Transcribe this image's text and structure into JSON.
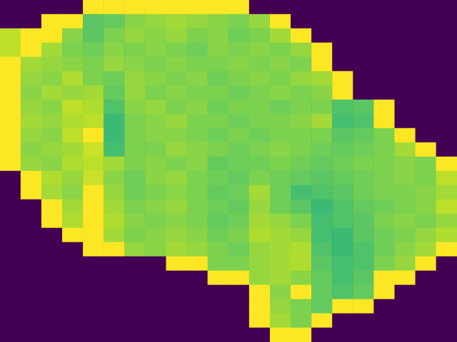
{
  "chart_data": {
    "type": "heatmap",
    "tick_labels": false,
    "color_range": [
      0,
      1
    ],
    "cells": [
      [
        0,
        0,
        0,
        0,
        1,
        1,
        1,
        1,
        1,
        1,
        1,
        1,
        0,
        0,
        0,
        0,
        0,
        0,
        0,
        0,
        0,
        0
      ],
      [
        0,
        0,
        1,
        1,
        0.74,
        0.76,
        0.82,
        0.84,
        0.86,
        0.84,
        0.82,
        0.8,
        0.84,
        1,
        0,
        0,
        0,
        0,
        0,
        0,
        0,
        0
      ],
      [
        0.9,
        1,
        1,
        0.82,
        0.74,
        0.8,
        0.84,
        0.82,
        0.84,
        0.8,
        0.82,
        0.78,
        0.8,
        0.86,
        1,
        0,
        0,
        0,
        0,
        0,
        0,
        0
      ],
      [
        0.9,
        1,
        0.86,
        0.8,
        0.78,
        0.82,
        0.8,
        0.82,
        0.8,
        0.78,
        0.82,
        0.8,
        0.82,
        0.8,
        0.84,
        1,
        0,
        0,
        0,
        0,
        0,
        0
      ],
      [
        1,
        0.86,
        0.84,
        0.82,
        0.8,
        0.84,
        0.82,
        0.8,
        0.82,
        0.8,
        0.8,
        0.82,
        0.8,
        0.82,
        0.8,
        1,
        0,
        0,
        0,
        0,
        0,
        0
      ],
      [
        1,
        0.84,
        0.82,
        0.88,
        0.8,
        0.78,
        0.84,
        0.82,
        0.8,
        0.82,
        0.78,
        0.8,
        0.82,
        0.8,
        0.84,
        0.86,
        1,
        0,
        0,
        0,
        0,
        0
      ],
      [
        1,
        0.82,
        0.86,
        0.84,
        0.86,
        0.76,
        0.84,
        0.8,
        0.82,
        0.8,
        0.8,
        0.78,
        0.8,
        0.82,
        0.8,
        0.82,
        1,
        0,
        0,
        0,
        0,
        0
      ],
      [
        1,
        0.84,
        0.82,
        0.9,
        0.88,
        0.72,
        0.82,
        0.84,
        0.8,
        0.82,
        0.78,
        0.8,
        0.8,
        0.78,
        0.8,
        0.8,
        0.72,
        0.74,
        1,
        0,
        0,
        0
      ],
      [
        1,
        0.86,
        0.84,
        0.88,
        0.9,
        0.68,
        0.8,
        0.82,
        0.84,
        0.8,
        0.8,
        0.78,
        0.8,
        0.8,
        0.82,
        0.86,
        0.7,
        0.72,
        1,
        0,
        0,
        0
      ],
      [
        1,
        0.84,
        0.82,
        0.9,
        1,
        0.68,
        0.8,
        0.82,
        0.82,
        0.8,
        0.78,
        0.8,
        0.78,
        0.8,
        0.8,
        0.8,
        0.74,
        0.76,
        0.8,
        1,
        0,
        0
      ],
      [
        1,
        0.82,
        0.84,
        0.86,
        0.92,
        0.7,
        0.8,
        0.8,
        0.84,
        0.82,
        0.8,
        0.78,
        0.8,
        0.82,
        0.8,
        0.78,
        0.76,
        0.78,
        0.8,
        0.86,
        1,
        0
      ],
      [
        1,
        0.84,
        0.82,
        0.88,
        0.9,
        0.86,
        0.8,
        0.82,
        0.8,
        0.82,
        0.76,
        0.78,
        0.78,
        0.8,
        0.78,
        0.76,
        0.78,
        0.8,
        0.8,
        0.82,
        0.8,
        1
      ],
      [
        0,
        1,
        0.88,
        0.84,
        0.92,
        0.82,
        0.78,
        0.82,
        0.84,
        0.8,
        0.78,
        0.76,
        0.8,
        0.78,
        0.76,
        0.74,
        0.76,
        0.78,
        0.8,
        0.82,
        0.8,
        0.9
      ],
      [
        0,
        1,
        0.86,
        0.82,
        1,
        0.84,
        0.78,
        0.8,
        0.82,
        0.8,
        0.76,
        0.78,
        0.86,
        0.78,
        0.7,
        0.72,
        0.74,
        0.78,
        0.8,
        0.8,
        0.82,
        0.86
      ],
      [
        0,
        0,
        1,
        0.86,
        1,
        0.86,
        0.8,
        0.82,
        0.84,
        0.8,
        0.78,
        0.76,
        0.84,
        0.78,
        0.74,
        0.68,
        0.72,
        0.76,
        0.78,
        0.8,
        0.82,
        0.9
      ],
      [
        0,
        0,
        1,
        0.88,
        1,
        0.88,
        0.82,
        0.8,
        0.82,
        0.8,
        0.76,
        0.78,
        0.86,
        0.84,
        0.8,
        0.7,
        0.72,
        0.74,
        0.8,
        0.82,
        0.8,
        0.84
      ],
      [
        0,
        0,
        0,
        1,
        1,
        0.86,
        0.8,
        0.82,
        0.84,
        0.82,
        0.78,
        0.8,
        0.88,
        0.86,
        0.84,
        0.7,
        0.68,
        0.74,
        0.78,
        0.8,
        0.84,
        0.88
      ],
      [
        0,
        0,
        0,
        0,
        1,
        1,
        0.84,
        0.82,
        0.86,
        0.84,
        0.8,
        0.78,
        0.84,
        0.86,
        0.88,
        0.72,
        0.68,
        0.72,
        0.78,
        0.82,
        0.86,
        1
      ],
      [
        0,
        0,
        0,
        0,
        0,
        0,
        0,
        0,
        1,
        1,
        0.8,
        0.8,
        0.84,
        0.86,
        0.88,
        0.74,
        0.7,
        0.72,
        0.8,
        0.84,
        1,
        0
      ],
      [
        0,
        0,
        0,
        0,
        0,
        0,
        0,
        0,
        0,
        0,
        1,
        1,
        0.84,
        0.86,
        0.82,
        0.76,
        0.7,
        0.74,
        1,
        1,
        0,
        0
      ],
      [
        0,
        0,
        0,
        0,
        0,
        0,
        0,
        0,
        0,
        0,
        0,
        0,
        1,
        0.82,
        1,
        0.76,
        0.72,
        0.76,
        1,
        0,
        0,
        0
      ],
      [
        0,
        0,
        0,
        0,
        0,
        0,
        0,
        0,
        0,
        0,
        0,
        0,
        1,
        0.84,
        0.8,
        0.76,
        1,
        1,
        0,
        0,
        0,
        0
      ],
      [
        0,
        0,
        0,
        0,
        0,
        0,
        0,
        0,
        0,
        0,
        0,
        0,
        1,
        0.86,
        0.8,
        1,
        0,
        0,
        0,
        0,
        0,
        0
      ],
      [
        0,
        0,
        0,
        0,
        0,
        0,
        0,
        0,
        0,
        0,
        0,
        0,
        0,
        1,
        1,
        0,
        0,
        0,
        0,
        0,
        0,
        0
      ]
    ]
  }
}
